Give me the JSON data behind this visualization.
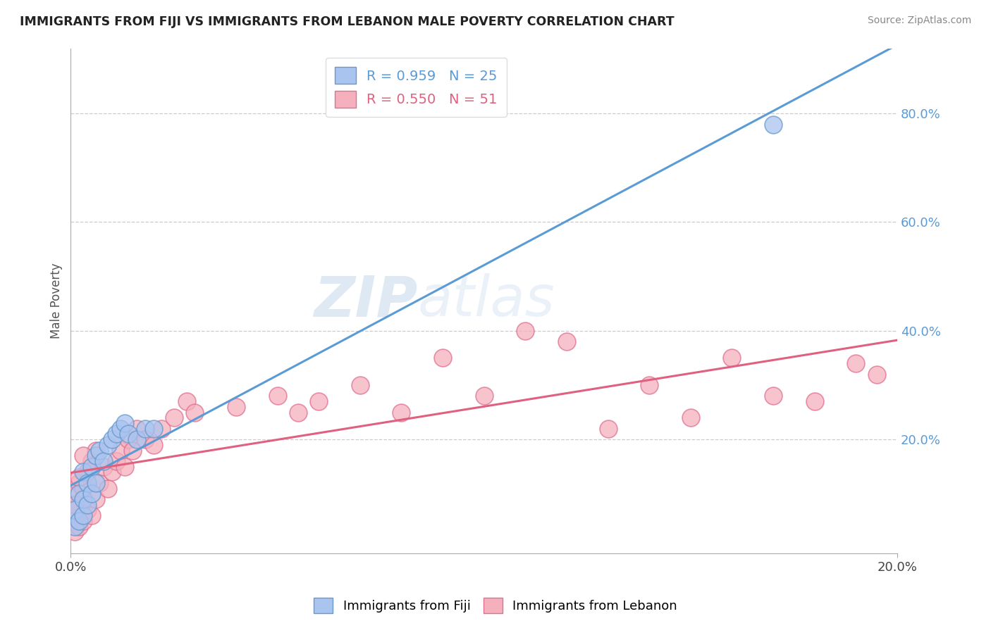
{
  "title": "IMMIGRANTS FROM FIJI VS IMMIGRANTS FROM LEBANON MALE POVERTY CORRELATION CHART",
  "source": "Source: ZipAtlas.com",
  "ylabel": "Male Poverty",
  "legend_label1": "Immigrants from Fiji",
  "legend_label2": "Immigrants from Lebanon",
  "R1": "0.959",
  "N1": "25",
  "R2": "0.550",
  "N2": "51",
  "fiji_color": "#aac4f0",
  "fiji_edge_color": "#6699cc",
  "lebanon_color": "#f5b0be",
  "lebanon_edge_color": "#e07090",
  "line1_color": "#5b9bd5",
  "line2_color": "#e06080",
  "watermark_zip": "ZIP",
  "watermark_atlas": "atlas",
  "fiji_x": [
    0.001,
    0.001,
    0.002,
    0.002,
    0.003,
    0.003,
    0.003,
    0.004,
    0.004,
    0.005,
    0.005,
    0.006,
    0.006,
    0.007,
    0.008,
    0.009,
    0.01,
    0.011,
    0.012,
    0.013,
    0.014,
    0.016,
    0.018,
    0.02,
    0.17
  ],
  "fiji_y": [
    0.04,
    0.07,
    0.05,
    0.1,
    0.06,
    0.09,
    0.14,
    0.08,
    0.12,
    0.1,
    0.15,
    0.12,
    0.17,
    0.18,
    0.16,
    0.19,
    0.2,
    0.21,
    0.22,
    0.23,
    0.21,
    0.2,
    0.22,
    0.22,
    0.78
  ],
  "lebanon_x": [
    0.001,
    0.001,
    0.001,
    0.002,
    0.002,
    0.002,
    0.003,
    0.003,
    0.004,
    0.004,
    0.005,
    0.005,
    0.006,
    0.006,
    0.007,
    0.008,
    0.009,
    0.01,
    0.011,
    0.012,
    0.013,
    0.014,
    0.015,
    0.016,
    0.018,
    0.02,
    0.022,
    0.025,
    0.028,
    0.03,
    0.04,
    0.05,
    0.055,
    0.06,
    0.07,
    0.08,
    0.09,
    0.1,
    0.11,
    0.12,
    0.13,
    0.14,
    0.15,
    0.16,
    0.17,
    0.18,
    0.19,
    0.195,
    0.001,
    0.002,
    0.003
  ],
  "lebanon_y": [
    0.03,
    0.06,
    0.1,
    0.04,
    0.08,
    0.12,
    0.05,
    0.11,
    0.07,
    0.14,
    0.06,
    0.16,
    0.09,
    0.18,
    0.12,
    0.15,
    0.11,
    0.14,
    0.16,
    0.18,
    0.15,
    0.2,
    0.18,
    0.22,
    0.2,
    0.19,
    0.22,
    0.24,
    0.27,
    0.25,
    0.26,
    0.28,
    0.25,
    0.27,
    0.3,
    0.25,
    0.35,
    0.28,
    0.4,
    0.38,
    0.22,
    0.3,
    0.24,
    0.35,
    0.28,
    0.27,
    0.34,
    0.32,
    0.08,
    0.13,
    0.17
  ],
  "xlim": [
    0.0,
    0.2
  ],
  "ylim": [
    -0.01,
    0.92
  ],
  "yticks": [
    0.2,
    0.4,
    0.6,
    0.8
  ],
  "ytick_labels": [
    "20.0%",
    "40.0%",
    "60.0%",
    "80.0%"
  ],
  "xtick_labels": [
    "0.0%",
    "20.0%"
  ]
}
